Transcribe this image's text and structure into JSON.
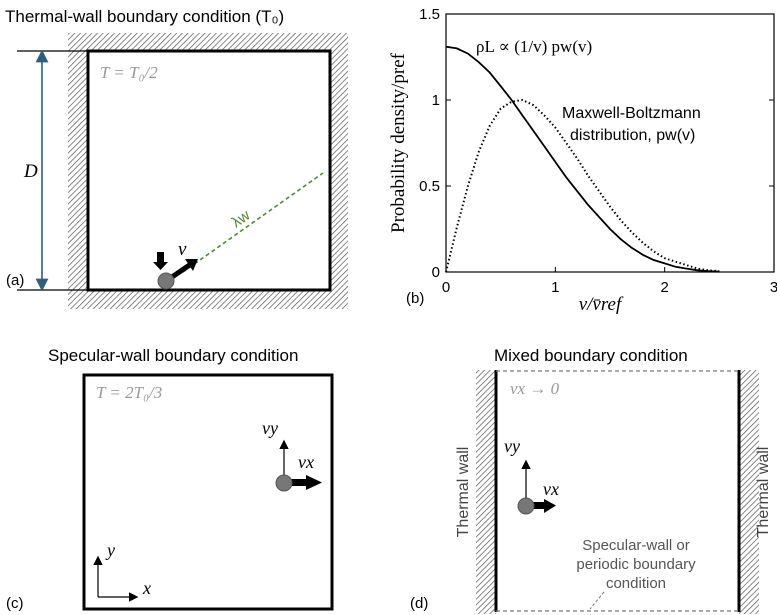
{
  "panel_a": {
    "title": "Thermal-wall boundary condition (T₀)",
    "temp_label": "T = T₀/2",
    "dimension_label": "D",
    "velocity_label": "v",
    "mean_free_path_label": "λw",
    "panel_label": "(a)"
  },
  "panel_b": {
    "panel_label": "(b)",
    "annotation_rho": "ρL ∝ (1/v) pw(v)",
    "annotation_mb_line1": "Maxwell-Boltzmann",
    "annotation_mb_line2": "distribution, pw(v)"
  },
  "panel_c": {
    "title": "Specular-wall boundary condition",
    "temp_label": "T = 2T₀/3",
    "vy_label": "vy",
    "vx_label": "vx",
    "axis_y_label": "y",
    "axis_x_label": "x",
    "panel_label": "(c)"
  },
  "panel_d": {
    "title": "Mixed boundary condition",
    "top_label": "vx → 0",
    "left_wall_label": "Thermal wall",
    "right_wall_label": "Thermal wall",
    "vy_label": "vy",
    "vx_label": "vx",
    "bottom_line1": "Specular-wall or",
    "bottom_line2": "periodic boundary",
    "bottom_line3": "condition",
    "panel_label": "(d)"
  },
  "chart_data": {
    "type": "line",
    "xlabel": "v/v̄ref",
    "ylabel": "Probability density/pref",
    "xlim": [
      0,
      3
    ],
    "ylim": [
      0,
      1.5
    ],
    "xticks": [
      "0",
      "1",
      "2",
      "3"
    ],
    "yticks": [
      "0",
      "0.5",
      "1",
      "1.5"
    ],
    "series": [
      {
        "name": "ρL ∝ (1/v) pw(v)",
        "style": "solid",
        "x": [
          0,
          0.1,
          0.2,
          0.3,
          0.4,
          0.5,
          0.6,
          0.7,
          0.8,
          0.9,
          1.0,
          1.1,
          1.2,
          1.3,
          1.4,
          1.5,
          1.6,
          1.7,
          1.8,
          1.9,
          2.0,
          2.1,
          2.2,
          2.3,
          2.4,
          2.5
        ],
        "y": [
          1.31,
          1.3,
          1.27,
          1.22,
          1.16,
          1.08,
          1.0,
          0.91,
          0.82,
          0.73,
          0.64,
          0.55,
          0.47,
          0.39,
          0.32,
          0.25,
          0.19,
          0.14,
          0.1,
          0.07,
          0.05,
          0.03,
          0.02,
          0.01,
          0.005,
          0.002
        ]
      },
      {
        "name": "Maxwell-Boltzmann distribution, pw(v)",
        "style": "dotted",
        "x": [
          0,
          0.1,
          0.2,
          0.3,
          0.4,
          0.5,
          0.6,
          0.7,
          0.8,
          0.9,
          1.0,
          1.1,
          1.2,
          1.3,
          1.4,
          1.5,
          1.6,
          1.7,
          1.8,
          1.9,
          2.0,
          2.1,
          2.2,
          2.3,
          2.4,
          2.5
        ],
        "y": [
          0,
          0.26,
          0.5,
          0.7,
          0.85,
          0.95,
          0.99,
          1.0,
          0.97,
          0.91,
          0.84,
          0.75,
          0.66,
          0.56,
          0.47,
          0.38,
          0.3,
          0.23,
          0.17,
          0.12,
          0.08,
          0.06,
          0.04,
          0.02,
          0.01,
          0.005
        ]
      }
    ]
  },
  "colors": {
    "line": "#000000",
    "muted_text": "#999999",
    "dimension_arrow": "#2b5f7d",
    "mean_free_path": "#4f8a2b",
    "particle": "#777777",
    "hatch": "#666666"
  }
}
